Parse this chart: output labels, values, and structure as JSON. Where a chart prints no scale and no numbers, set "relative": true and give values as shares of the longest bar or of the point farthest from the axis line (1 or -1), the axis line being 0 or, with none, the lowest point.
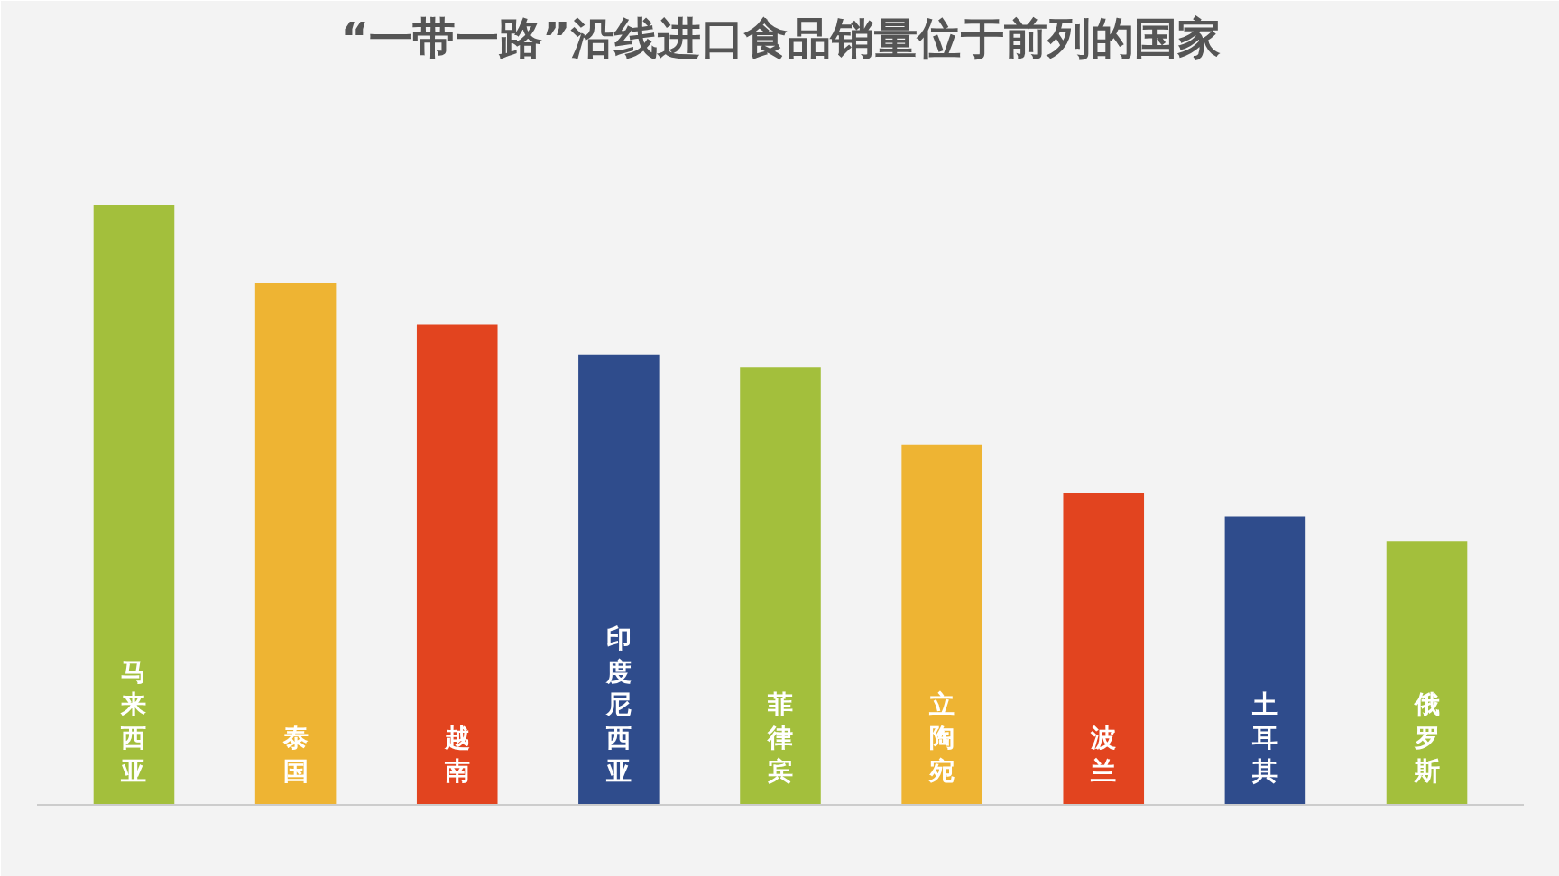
{
  "chart_data": {
    "type": "bar",
    "title": "“一带一路”沿线进口食品销量位于前列的国家",
    "relative": true,
    "categories": [
      "马来西亚",
      "泰国",
      "越南",
      "印度尼西亚",
      "菲律宾",
      "立陶宛",
      "波兰",
      "土耳其",
      "俄罗斯"
    ],
    "values": [
      1,
      0.87,
      0.8,
      0.75,
      0.73,
      0.6,
      0.52,
      0.48,
      0.44
    ],
    "colors": [
      "#a3bf3c",
      "#eeb433",
      "#e2441f",
      "#2f4c8c",
      "#a3bf3c",
      "#eeb433",
      "#e2441f",
      "#2f4c8c",
      "#a3bf3c"
    ]
  }
}
